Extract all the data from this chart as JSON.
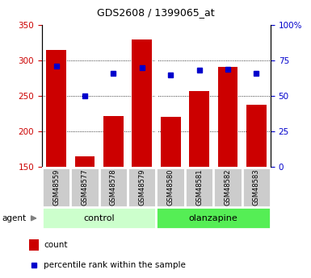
{
  "title": "GDS2608 / 1399065_at",
  "categories": [
    "GSM48559",
    "GSM48577",
    "GSM48578",
    "GSM48579",
    "GSM48580",
    "GSM48581",
    "GSM48582",
    "GSM48583"
  ],
  "bar_values": [
    315,
    165,
    222,
    330,
    221,
    257,
    291,
    238
  ],
  "percentile_values": [
    71,
    50,
    66,
    70,
    65,
    68,
    69,
    66
  ],
  "bar_color": "#cc0000",
  "dot_color": "#0000cc",
  "ylim_left": [
    150,
    350
  ],
  "ylim_right": [
    0,
    100
  ],
  "yticks_left": [
    150,
    200,
    250,
    300,
    350
  ],
  "yticks_right": [
    0,
    25,
    50,
    75,
    100
  ],
  "yticklabels_right": [
    "0",
    "25",
    "50",
    "75",
    "100%"
  ],
  "grid_values": [
    200,
    250,
    300
  ],
  "n_control": 4,
  "n_olanzapine": 4,
  "control_label": "control",
  "olanzapine_label": "olanzapine",
  "agent_label": "agent",
  "legend_count": "count",
  "legend_percentile": "percentile rank within the sample",
  "bar_width": 0.7,
  "tick_label_color_left": "#cc0000",
  "tick_label_color_right": "#0000cc",
  "control_bg": "#ccffcc",
  "olanzapine_bg": "#55ee55",
  "sample_bg": "#cccccc"
}
